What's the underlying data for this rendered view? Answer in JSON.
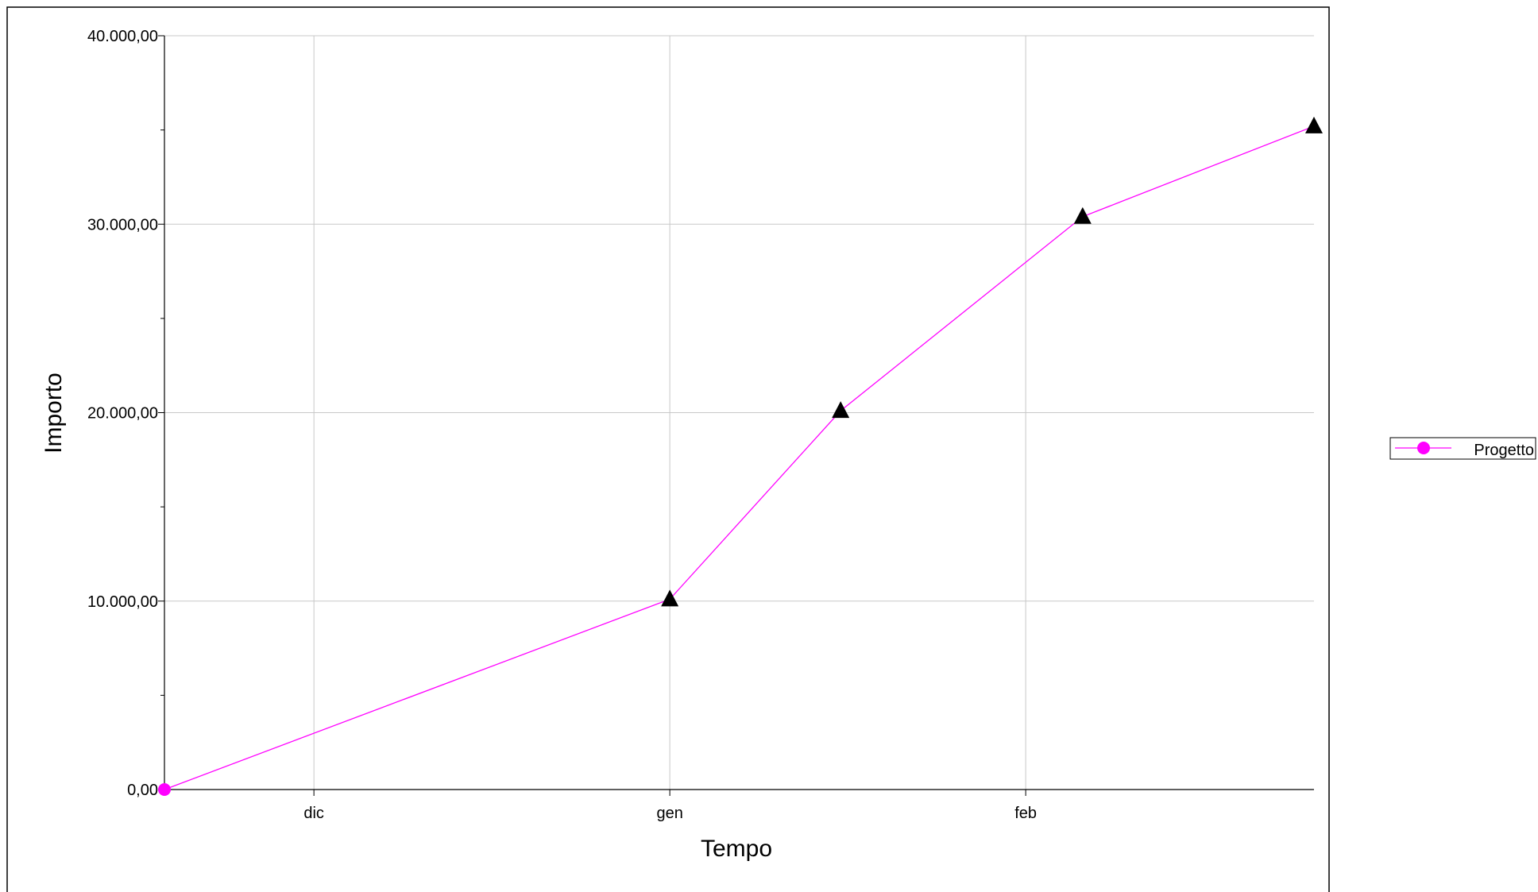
{
  "chart_data": {
    "type": "line",
    "title": "",
    "xlabel": "Tempo",
    "ylabel": "Importo",
    "x_tick_labels": [
      "dic",
      "gen",
      "feb"
    ],
    "x_tick_positions_months": [
      0,
      1,
      2
    ],
    "y_ticks": [
      0,
      10000,
      20000,
      30000,
      40000
    ],
    "y_tick_labels": [
      "0,00",
      "10.000,00",
      "20.000,00",
      "30.000,00",
      "40.000,00"
    ],
    "ylim": [
      0,
      40000
    ],
    "xlim_months": [
      -0.42,
      2.81
    ],
    "grid": true,
    "legend_position": "right",
    "series": [
      {
        "name": "Progetto",
        "color": "#ff00ff",
        "x_months": [
          -0.42,
          1.0,
          1.48,
          2.16,
          2.81
        ],
        "values": [
          0,
          10100,
          20100,
          30400,
          35200
        ],
        "markers": [
          "circle",
          "triangle",
          "triangle",
          "triangle",
          "triangle"
        ]
      }
    ]
  }
}
